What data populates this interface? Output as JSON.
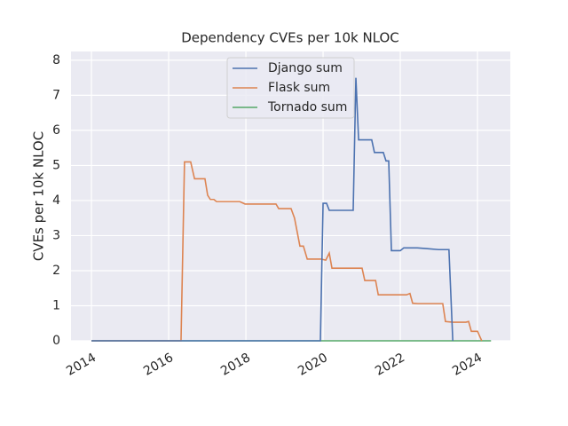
{
  "chart_data": {
    "type": "line",
    "title": "Dependency CVEs per 10k NLOC",
    "y_label": "CVEs per 10k NLOC",
    "xlim": [
      2013.47,
      2024.85
    ],
    "ylim": [
      0,
      8.25
    ],
    "xticks": [
      2014,
      2016,
      2018,
      2020,
      2022,
      2024
    ],
    "yticks": [
      0,
      1,
      2,
      3,
      4,
      5,
      6,
      7,
      8
    ],
    "grid": true,
    "legend": "upper center",
    "series": [
      {
        "name": "Django sum",
        "color": "#4c72b0",
        "x": [
          2014.0,
          2019.93,
          2020.0,
          2020.09,
          2020.16,
          2020.78,
          2020.85,
          2020.92,
          2021.26,
          2021.33,
          2021.56,
          2021.63,
          2021.7,
          2021.77,
          2022.0,
          2022.09,
          2022.44,
          2022.67,
          2022.99,
          2023.26,
          2023.36
        ],
        "values": [
          0,
          0,
          3.92,
          3.92,
          3.72,
          3.72,
          7.5,
          5.73,
          5.73,
          5.37,
          5.37,
          5.13,
          5.13,
          2.57,
          2.57,
          2.65,
          2.65,
          2.63,
          2.6,
          2.6,
          0
        ]
      },
      {
        "name": "Flask sum",
        "color": "#dd8452",
        "x": [
          2014.0,
          2016.32,
          2016.41,
          2016.57,
          2016.67,
          2016.94,
          2017.01,
          2017.08,
          2017.17,
          2017.24,
          2017.84,
          2017.98,
          2018.78,
          2018.85,
          2019.17,
          2019.26,
          2019.4,
          2019.49,
          2019.59,
          2019.95,
          2020.07,
          2020.16,
          2020.23,
          2021.01,
          2021.08,
          2021.36,
          2021.43,
          2022.16,
          2022.25,
          2022.32,
          2022.46,
          2023.1,
          2023.17,
          2023.36,
          2023.7,
          2023.77,
          2023.84,
          2024.0,
          2024.11
        ],
        "values": [
          0,
          0,
          5.1,
          5.1,
          4.62,
          4.62,
          4.15,
          4.03,
          4.03,
          3.97,
          3.97,
          3.9,
          3.9,
          3.77,
          3.77,
          3.5,
          2.7,
          2.7,
          2.33,
          2.33,
          2.3,
          2.5,
          2.07,
          2.07,
          1.72,
          1.72,
          1.31,
          1.31,
          1.35,
          1.07,
          1.06,
          1.06,
          0.55,
          0.53,
          0.53,
          0.55,
          0.27,
          0.27,
          0
        ]
      },
      {
        "name": "Tornado sum",
        "color": "#55a868",
        "x": [
          2014.0,
          2024.35
        ],
        "values": [
          0,
          0
        ]
      }
    ]
  }
}
